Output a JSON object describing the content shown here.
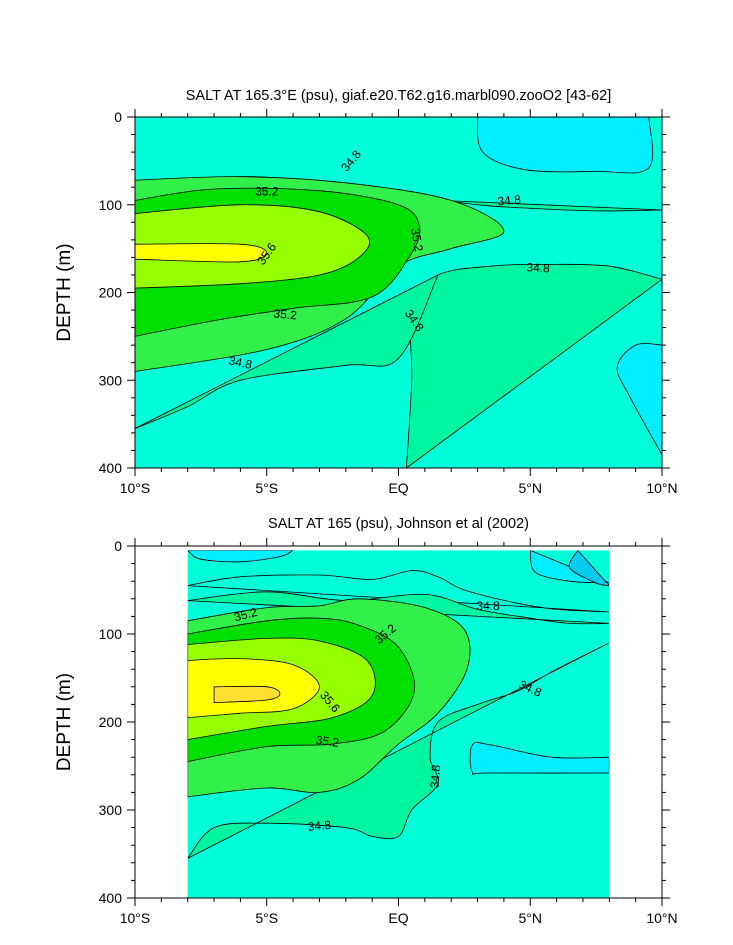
{
  "chart_data": [
    {
      "type": "contour",
      "title": "SALT AT 165.3°E (psu), giaf.e20.T62.g16.marbl090.zooO2 [43-62]",
      "xlabel": "",
      "ylabel": "DEPTH (m)",
      "xlim": [
        -10,
        10
      ],
      "ylim": [
        400,
        0
      ],
      "x_ticks": [
        {
          "value": -10,
          "label": "10°S"
        },
        {
          "value": -5,
          "label": "5°S"
        },
        {
          "value": 0,
          "label": "EQ"
        },
        {
          "value": 5,
          "label": "5°N"
        },
        {
          "value": 10,
          "label": "10°N"
        }
      ],
      "y_ticks": [
        {
          "value": 0,
          "label": "0"
        },
        {
          "value": 100,
          "label": "100"
        },
        {
          "value": 200,
          "label": "200"
        },
        {
          "value": 300,
          "label": "300"
        },
        {
          "value": 400,
          "label": "400"
        }
      ],
      "data_extent": {
        "lon": [
          -10,
          10
        ],
        "depth": [
          0,
          400
        ]
      },
      "background_level": 34.6,
      "levels": [
        {
          "value": 34.4,
          "color": "#00eeff"
        },
        {
          "value": 34.6,
          "color": "#00ffd8"
        },
        {
          "value": 34.8,
          "color": "#00f5a0"
        },
        {
          "value": 35.0,
          "color": "#32f04a"
        },
        {
          "value": 35.2,
          "color": "#00e000"
        },
        {
          "value": 35.4,
          "color": "#96ff00"
        },
        {
          "value": 35.6,
          "color": "#ffff00"
        }
      ],
      "contours": [
        {
          "level": 34.4,
          "points": [
            [
              3,
              0
            ],
            [
              3.2,
              40
            ],
            [
              4.8,
              60
            ],
            [
              7.5,
              62
            ],
            [
              9.5,
              58
            ],
            [
              9.5,
              0
            ]
          ]
        },
        {
          "level": 34.4,
          "points": [
            [
              10,
              260
            ],
            [
              9,
              260
            ],
            [
              8.3,
              285
            ],
            [
              8.8,
              320
            ],
            [
              10,
              385
            ]
          ]
        },
        {
          "level": 34.8,
          "points": [
            [
              -10,
              80
            ],
            [
              -6,
              68
            ],
            [
              -3,
              75
            ],
            [
              0,
              88
            ],
            [
              3,
              100
            ],
            [
              5,
              104
            ],
            [
              7.5,
              107
            ],
            [
              10,
              106
            ]
          ]
        },
        {
          "level": 34.8,
          "points": [
            [
              10,
              185
            ],
            [
              8,
              170
            ],
            [
              5.5,
              168
            ],
            [
              3.5,
              170
            ],
            [
              1.5,
              180
            ],
            [
              0.5,
              215
            ],
            [
              0.5,
              300
            ],
            [
              0.3,
              400
            ]
          ]
        },
        {
          "level": 34.8,
          "points": [
            [
              -10,
              355
            ],
            [
              -8,
              330
            ],
            [
              -6,
              300
            ],
            [
              -2,
              283
            ],
            [
              0,
              275
            ],
            [
              1.5,
              180
            ]
          ]
        },
        {
          "level": 35.0,
          "points": [
            [
              -10,
              72
            ],
            [
              -6,
              68
            ],
            [
              -2,
              75
            ],
            [
              2,
              95
            ],
            [
              4,
              130
            ],
            [
              2,
              150
            ],
            [
              0,
              170
            ],
            [
              -2,
              230
            ],
            [
              -5,
              265
            ],
            [
              -10,
              290
            ]
          ]
        },
        {
          "level": 35.2,
          "points": [
            [
              -10,
              95
            ],
            [
              -7,
              82
            ],
            [
              -3,
              84
            ],
            [
              0,
              100
            ],
            [
              0.8,
              125
            ],
            [
              0.4,
              160
            ],
            [
              -1,
              205
            ],
            [
              -4,
              218
            ],
            [
              -7,
              232
            ],
            [
              -10,
              250
            ]
          ]
        },
        {
          "level": 35.4,
          "points": [
            [
              -10,
              110
            ],
            [
              -6,
              100
            ],
            [
              -3,
              108
            ],
            [
              -1.2,
              135
            ],
            [
              -1.5,
              160
            ],
            [
              -3,
              180
            ],
            [
              -6,
              190
            ],
            [
              -10,
              195
            ]
          ]
        },
        {
          "level": 35.6,
          "points": [
            [
              -10,
              145
            ],
            [
              -6,
              145
            ],
            [
              -5,
              155
            ],
            [
              -6,
              165
            ],
            [
              -10,
              162
            ]
          ]
        }
      ],
      "contour_labels": [
        {
          "text": "34.8",
          "lon": -1.8,
          "depth": 50,
          "angle": 50
        },
        {
          "text": "35.2",
          "lon": -5,
          "depth": 85,
          "angle": 0
        },
        {
          "text": "34.8",
          "lon": 4.2,
          "depth": 95,
          "angle": 5
        },
        {
          "text": "35.6",
          "lon": -5,
          "depth": 156,
          "angle": 55
        },
        {
          "text": "35.2",
          "lon": 0.7,
          "depth": 140,
          "angle": -80
        },
        {
          "text": "34.8",
          "lon": 5.3,
          "depth": 172,
          "angle": -3
        },
        {
          "text": "35.2",
          "lon": -4.3,
          "depth": 225,
          "angle": -5
        },
        {
          "text": "34.8",
          "lon": 0.6,
          "depth": 232,
          "angle": -55
        },
        {
          "text": "34.8",
          "lon": -6,
          "depth": 280,
          "angle": -12
        }
      ]
    },
    {
      "type": "contour",
      "title": "SALT AT 165 (psu), Johnson et al (2002)",
      "xlabel": "",
      "ylabel": "DEPTH (m)",
      "xlim": [
        -10,
        10
      ],
      "ylim": [
        400,
        0
      ],
      "x_ticks": [
        {
          "value": -10,
          "label": "10°S"
        },
        {
          "value": -5,
          "label": "5°S"
        },
        {
          "value": 0,
          "label": "EQ"
        },
        {
          "value": 5,
          "label": "5°N"
        },
        {
          "value": 10,
          "label": "10°N"
        }
      ],
      "y_ticks": [
        {
          "value": 0,
          "label": "0"
        },
        {
          "value": 100,
          "label": "100"
        },
        {
          "value": 200,
          "label": "200"
        },
        {
          "value": 300,
          "label": "300"
        },
        {
          "value": 400,
          "label": "400"
        }
      ],
      "data_extent": {
        "lon": [
          -8,
          8
        ],
        "depth": [
          5,
          400
        ]
      },
      "background_level": 34.6,
      "levels": [
        {
          "value": 34.2,
          "color": "#00ccee"
        },
        {
          "value": 34.4,
          "color": "#00eeff"
        },
        {
          "value": 34.6,
          "color": "#00ffd8"
        },
        {
          "value": 34.8,
          "color": "#00f5a0"
        },
        {
          "value": 35.0,
          "color": "#32f04a"
        },
        {
          "value": 35.2,
          "color": "#00e000"
        },
        {
          "value": 35.4,
          "color": "#96ff00"
        },
        {
          "value": 35.6,
          "color": "#ffff00"
        },
        {
          "value": 35.8,
          "color": "#ffe030"
        }
      ],
      "contours": [
        {
          "level": 34.4,
          "points": [
            [
              5,
              5
            ],
            [
              5.2,
              30
            ],
            [
              6.5,
              40
            ],
            [
              8,
              42
            ]
          ]
        },
        {
          "level": 34.4,
          "points": [
            [
              -8,
              5
            ],
            [
              -7.5,
              15
            ],
            [
              -6,
              18
            ],
            [
              -4.5,
              12
            ],
            [
              -4,
              5
            ]
          ]
        },
        {
          "level": 34.2,
          "points": [
            [
              6.8,
              5
            ],
            [
              6.5,
              25
            ],
            [
              7.5,
              42
            ],
            [
              8,
              45
            ]
          ]
        },
        {
          "level": 34.4,
          "points": [
            [
              8,
              240
            ],
            [
              5.8,
              240
            ],
            [
              3.5,
              226
            ],
            [
              2.8,
              226
            ],
            [
              2.8,
              257
            ],
            [
              3.4,
              258
            ],
            [
              8,
              258
            ]
          ]
        },
        {
          "level": 34.6,
          "points": [
            [
              -8,
              45
            ],
            [
              -6,
              35
            ],
            [
              -3,
              33
            ],
            [
              -1,
              38
            ],
            [
              0.5,
              28
            ],
            [
              1.5,
              35
            ],
            [
              2.5,
              50
            ],
            [
              4.5,
              65
            ],
            [
              6,
              72
            ],
            [
              8,
              75
            ]
          ]
        },
        {
          "level": 34.8,
          "points": [
            [
              -8,
              62
            ],
            [
              -5,
              52
            ],
            [
              -2,
              62
            ],
            [
              1,
              55
            ],
            [
              3,
              72
            ],
            [
              5,
              82
            ],
            [
              6.5,
              88
            ],
            [
              8,
              88
            ]
          ]
        },
        {
          "level": 34.8,
          "points": [
            [
              8,
              110
            ],
            [
              6,
              140
            ],
            [
              4.5,
              165
            ],
            [
              3,
              180
            ],
            [
              1.5,
              200
            ],
            [
              1.2,
              240
            ],
            [
              1.5,
              270
            ],
            [
              0.5,
              300
            ],
            [
              0,
              330
            ],
            [
              -1,
              330
            ],
            [
              -2,
              320
            ],
            [
              -5,
              315
            ],
            [
              -7,
              320
            ],
            [
              -8,
              355
            ]
          ]
        },
        {
          "level": 35.0,
          "points": [
            [
              -8,
              85
            ],
            [
              -5,
              70
            ],
            [
              -3,
              68
            ],
            [
              -1.5,
              60
            ],
            [
              1,
              70
            ],
            [
              2.5,
              95
            ],
            [
              2.6,
              140
            ],
            [
              1.5,
              190
            ],
            [
              0,
              225
            ],
            [
              -1.5,
              265
            ],
            [
              -3,
              280
            ],
            [
              -5,
              275
            ],
            [
              -8,
              285
            ]
          ]
        },
        {
          "level": 35.2,
          "points": [
            [
              -8,
              100
            ],
            [
              -5,
              85
            ],
            [
              -3,
              82
            ],
            [
              -1.5,
              90
            ],
            [
              0,
              115
            ],
            [
              0.6,
              165
            ],
            [
              -0.5,
              210
            ],
            [
              -2.5,
              225
            ],
            [
              -5,
              228
            ],
            [
              -8,
              245
            ]
          ]
        },
        {
          "level": 35.4,
          "points": [
            [
              -8,
              112
            ],
            [
              -5,
              105
            ],
            [
              -3,
              108
            ],
            [
              -1.2,
              130
            ],
            [
              -1,
              170
            ],
            [
              -2.5,
              195
            ],
            [
              -5,
              205
            ],
            [
              -8,
              220
            ]
          ]
        },
        {
          "level": 35.6,
          "points": [
            [
              -8,
              130
            ],
            [
              -6,
              128
            ],
            [
              -4,
              135
            ],
            [
              -3,
              160
            ],
            [
              -4,
              185
            ],
            [
              -6,
              190
            ],
            [
              -8,
              195
            ]
          ]
        },
        {
          "level": 35.8,
          "points": [
            [
              -7,
              160
            ],
            [
              -5,
              160
            ],
            [
              -4.5,
              168
            ],
            [
              -5,
              175
            ],
            [
              -7,
              178
            ]
          ]
        }
      ],
      "contour_labels": [
        {
          "text": "35.2",
          "lon": -5.8,
          "depth": 78,
          "angle": 15
        },
        {
          "text": "35.2",
          "lon": -0.5,
          "depth": 100,
          "angle": 40
        },
        {
          "text": "34.8",
          "lon": 3.4,
          "depth": 68,
          "angle": 0
        },
        {
          "text": "35.6",
          "lon": -2.6,
          "depth": 177,
          "angle": -50
        },
        {
          "text": "34.8",
          "lon": 5,
          "depth": 162,
          "angle": -25
        },
        {
          "text": "35.2",
          "lon": -2.7,
          "depth": 222,
          "angle": -8
        },
        {
          "text": "34.8",
          "lon": 1.4,
          "depth": 262,
          "angle": 85
        },
        {
          "text": "34.8",
          "lon": -3,
          "depth": 318,
          "angle": 5
        }
      ]
    }
  ]
}
